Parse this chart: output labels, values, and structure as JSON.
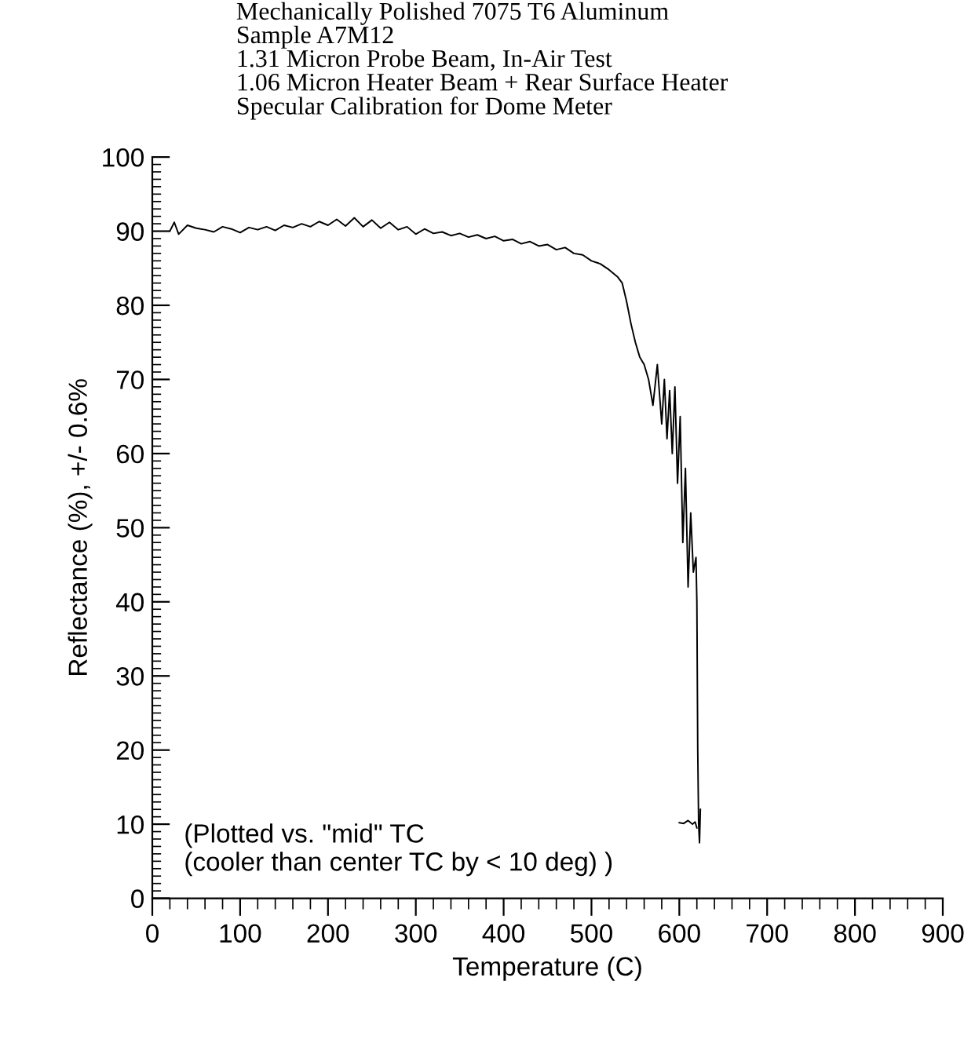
{
  "chart_data": {
    "type": "line",
    "title": "Mechanically Polished 7075 T6 Aluminum\nSample A7M12\n1.31 Micron Probe Beam, In-Air Test\n1.06 Micron Heater Beam + Rear Surface Heater\nSpecular Calibration for Dome Meter",
    "xlabel": "Temperature (C)",
    "ylabel": "Reflectance (%), +/- 0.6%",
    "annotations": [
      "(Plotted vs. \"mid\" TC\n(cooler than center TC by < 10 deg) )"
    ],
    "xlim": [
      0,
      900
    ],
    "ylim": [
      0,
      100
    ],
    "xticks": [
      0,
      100,
      200,
      300,
      400,
      500,
      600,
      700,
      800,
      900
    ],
    "yticks": [
      0,
      10,
      20,
      30,
      40,
      50,
      60,
      70,
      80,
      90,
      100
    ],
    "grid": false,
    "legend": false,
    "marker": "none",
    "line_style": "solid",
    "series": [
      {
        "color": "#000000",
        "x": [
          20,
          25,
          30,
          40,
          50,
          60,
          70,
          80,
          90,
          100,
          110,
          120,
          130,
          140,
          150,
          160,
          170,
          180,
          190,
          200,
          210,
          220,
          230,
          240,
          250,
          260,
          270,
          280,
          290,
          300,
          310,
          320,
          330,
          340,
          350,
          360,
          370,
          380,
          390,
          400,
          410,
          420,
          430,
          440,
          450,
          460,
          470,
          480,
          490,
          500,
          510,
          520,
          530,
          535,
          540,
          545,
          550,
          555,
          560,
          565,
          570,
          575,
          580,
          583,
          586,
          589,
          592,
          595,
          598,
          601,
          604,
          607,
          610,
          613,
          616,
          619,
          620,
          621,
          622,
          623,
          624
        ],
        "values": [
          90.0,
          91.2,
          89.6,
          90.8,
          90.4,
          90.2,
          89.9,
          90.6,
          90.3,
          89.8,
          90.5,
          90.2,
          90.6,
          90.1,
          90.8,
          90.5,
          91.0,
          90.6,
          91.3,
          90.8,
          91.6,
          90.7,
          91.8,
          90.6,
          91.5,
          90.4,
          91.2,
          90.2,
          90.6,
          89.6,
          90.3,
          89.7,
          89.9,
          89.4,
          89.7,
          89.2,
          89.5,
          89.0,
          89.3,
          88.7,
          88.9,
          88.3,
          88.6,
          88.0,
          88.2,
          87.5,
          87.8,
          87.0,
          86.8,
          86.0,
          85.6,
          84.8,
          83.8,
          83.0,
          80.5,
          77.5,
          75.0,
          73.0,
          72.0,
          70.0,
          66.5,
          72.0,
          64.0,
          70.0,
          62.0,
          68.5,
          60.0,
          69.0,
          56.0,
          65.0,
          48.0,
          58.0,
          42.0,
          52.0,
          44.0,
          46.0,
          40.0,
          20.0,
          10.0,
          7.5,
          12.0
        ]
      },
      {
        "color": "#000000",
        "x": [
          600,
          605,
          610,
          615,
          618,
          620
        ],
        "values": [
          10.2,
          10.1,
          10.5,
          10.0,
          10.3,
          9.5
        ]
      }
    ]
  }
}
